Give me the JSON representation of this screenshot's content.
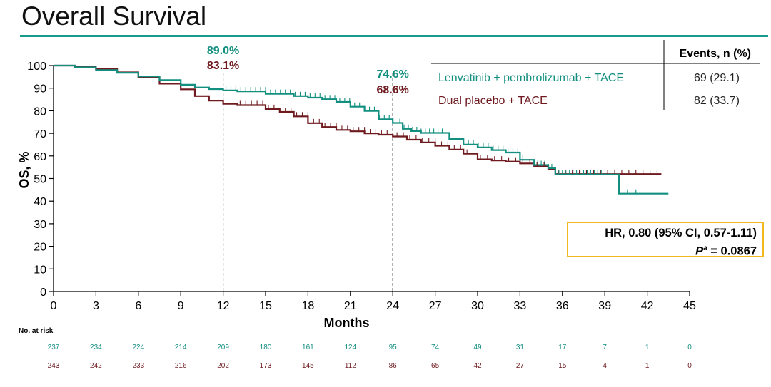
{
  "title": "Overall Survival",
  "chart_data": {
    "type": "line",
    "subtype": "kaplan-meier",
    "xlabel": "Months",
    "ylabel": "OS, %",
    "xlim": [
      0,
      45
    ],
    "ylim": [
      0,
      100
    ],
    "xticks": [
      0,
      3,
      6,
      9,
      12,
      15,
      18,
      21,
      24,
      27,
      30,
      33,
      36,
      39,
      42,
      45
    ],
    "yticks": [
      0,
      10,
      20,
      30,
      40,
      50,
      60,
      70,
      80,
      90,
      100
    ],
    "colors": {
      "treatment": "#138f80",
      "control": "#6e1a1f",
      "hr_border": "#f2b820"
    },
    "series": [
      {
        "name": "Lenvatinib + pembrolizumab + TACE",
        "events": "69 (29.1)",
        "x": [
          0,
          1.5,
          3,
          4.5,
          6,
          7.5,
          9,
          10,
          11,
          12,
          13,
          15,
          17,
          18,
          19,
          20,
          21,
          22,
          23,
          24,
          24.7,
          25.3,
          26,
          27,
          28,
          29,
          30,
          31,
          32,
          33,
          34,
          35,
          35.5,
          36,
          37,
          39.5,
          40,
          42,
          43.5
        ],
        "y": [
          100,
          99.2,
          98,
          96.8,
          95.2,
          93.6,
          91.5,
          90.3,
          89.6,
          89.0,
          88.6,
          87.5,
          86.5,
          85.8,
          85.1,
          83.9,
          81.8,
          79.9,
          76.2,
          74.6,
          72.0,
          71.0,
          70.2,
          70.2,
          67.5,
          65.0,
          63.8,
          62.6,
          61.5,
          58.3,
          56.0,
          54.6,
          51.8,
          51.8,
          51.8,
          51.8,
          43.3,
          43.3,
          43.3
        ],
        "risk": [
          237,
          234,
          224,
          214,
          209,
          180,
          161,
          124,
          95,
          74,
          49,
          31,
          17,
          7,
          1,
          0
        ]
      },
      {
        "name": "Dual placebo + TACE",
        "events": "82 (33.7)",
        "x": [
          0,
          1.5,
          3,
          4.5,
          6,
          7.5,
          9,
          10,
          11,
          12,
          13,
          15,
          16,
          17,
          18,
          19,
          20,
          21,
          22,
          23,
          24,
          25,
          26,
          27,
          28,
          29,
          30,
          31,
          32,
          33,
          34,
          35,
          35.5,
          36,
          38,
          40,
          42,
          43
        ],
        "y": [
          100,
          99.5,
          98.5,
          97,
          95,
          92,
          89.5,
          86.5,
          84.5,
          83.1,
          82.5,
          80.8,
          79.5,
          77.5,
          74.5,
          72.8,
          71.5,
          70.9,
          70.0,
          69.4,
          68.6,
          67.2,
          66.0,
          64.5,
          62.8,
          61.0,
          58.5,
          58.0,
          57.5,
          56.7,
          55.5,
          54.0,
          52.0,
          52.0,
          52.0,
          52.0,
          52.0,
          52.0
        ],
        "risk": [
          243,
          242,
          233,
          216,
          202,
          173,
          145,
          112,
          86,
          65,
          42,
          27,
          15,
          4,
          1,
          0
        ]
      }
    ],
    "annotations": [
      {
        "x": 12,
        "teal": "89.0%",
        "maroon": "83.1%"
      },
      {
        "x": 24,
        "teal": "74.6%",
        "maroon": "68.6%"
      }
    ],
    "risk_table": {
      "header": "No. at risk",
      "x": [
        0,
        3,
        6,
        9,
        12,
        15,
        18,
        21,
        24,
        27,
        30,
        33,
        36,
        39,
        42,
        45
      ]
    },
    "legend": {
      "events_header": "Events, n (%)",
      "placement": "top-right"
    },
    "hr": {
      "line1": "HR, 0.80 (95% CI, 0.57-1.11)",
      "p_label": "P",
      "p_sup": "a",
      "p_value": " = 0.0867"
    }
  }
}
